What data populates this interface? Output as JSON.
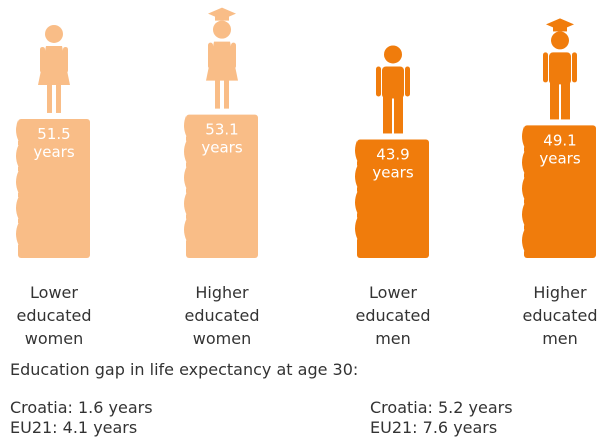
{
  "chart_data": {
    "type": "pictogram",
    "categories": [
      "Lower educated women",
      "Higher educated women",
      "Lower educated men",
      "Higher educated men"
    ],
    "values": [
      51.5,
      53.1,
      43.9,
      49.1
    ],
    "unit": "years",
    "colors": [
      "#f9bd87",
      "#f9bd87",
      "#f07c0c",
      "#f07c0c"
    ],
    "figures": [
      "woman",
      "woman",
      "man",
      "man"
    ],
    "caps": [
      false,
      true,
      false,
      true
    ],
    "notes": {
      "heading": "Education gap in life expectancy at age 30:",
      "women": [
        "Croatia: 1.6 years",
        "EU21: 4.1 years"
      ],
      "men": [
        "Croatia: 5.2 years",
        "EU21: 7.6 years"
      ]
    }
  }
}
